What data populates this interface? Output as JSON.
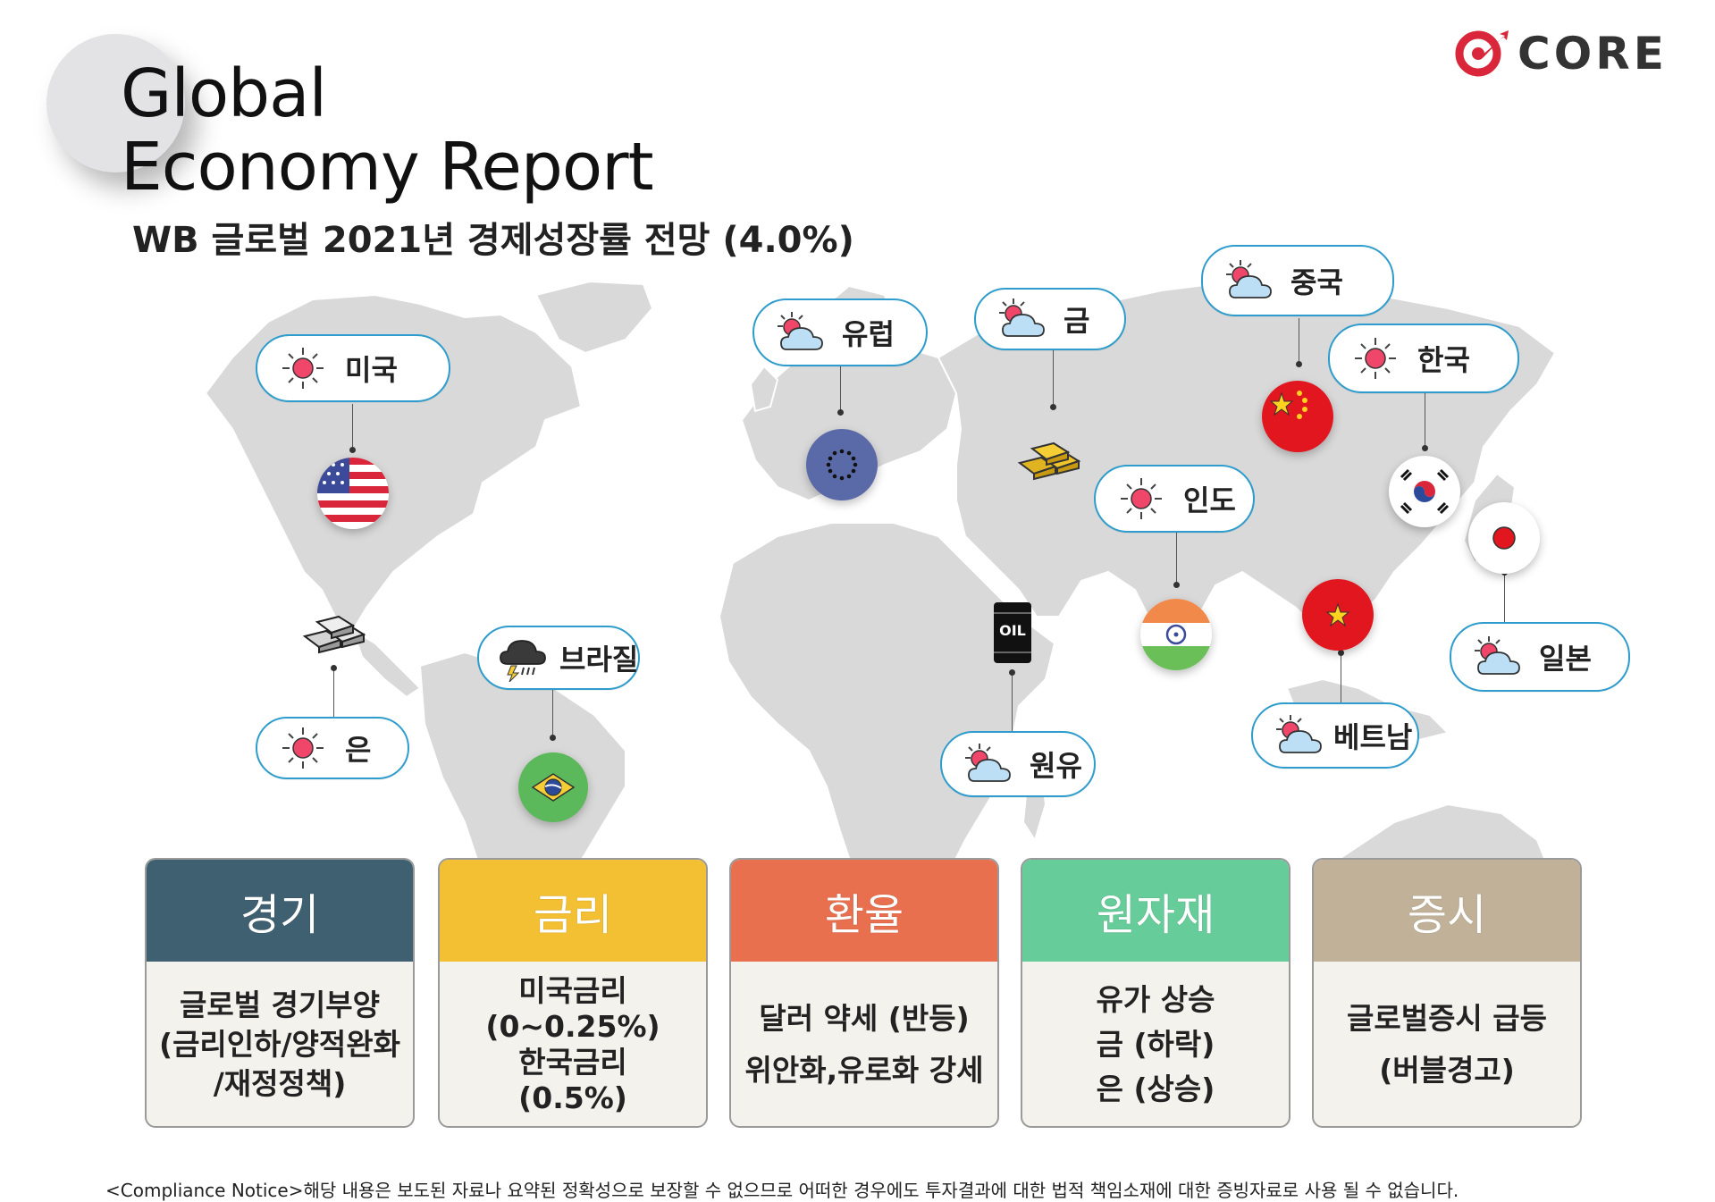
{
  "header": {
    "title_line1": "Global",
    "title_line2": "Economy Report",
    "subtitle": "WB 글로벌 2021년 경제성장률 전망 (4.0%)"
  },
  "logo": {
    "text": "CORE",
    "accent_color": "#d9263a"
  },
  "callouts": [
    {
      "id": "usa",
      "label": "미국",
      "weather": "sun-icon"
    },
    {
      "id": "europe",
      "label": "유럽",
      "weather": "sun-cloud-icon"
    },
    {
      "id": "gold",
      "label": "금",
      "weather": "sun-cloud-icon"
    },
    {
      "id": "china",
      "label": "중국",
      "weather": "sun-cloud-icon"
    },
    {
      "id": "korea",
      "label": "한국",
      "weather": "sun-icon"
    },
    {
      "id": "india",
      "label": "인도",
      "weather": "sun-icon"
    },
    {
      "id": "brazil",
      "label": "브라질",
      "weather": "storm-cloud-icon"
    },
    {
      "id": "silver",
      "label": "은",
      "weather": "sun-icon"
    },
    {
      "id": "oil",
      "label": "원유",
      "weather": "sun-cloud-icon"
    },
    {
      "id": "vietnam",
      "label": "베트남",
      "weather": "sun-cloud-icon"
    },
    {
      "id": "japan",
      "label": "일본",
      "weather": "sun-cloud-icon"
    }
  ],
  "badges": {
    "oil_label": "OIL"
  },
  "cards": [
    {
      "head": "경기",
      "color": "#3f6070",
      "lines": [
        "글로벌 경기부양",
        "(금리인하/양적완화",
        "/재정정책)"
      ]
    },
    {
      "head": "금리",
      "color": "#f3bf33",
      "lines": [
        "미국금리",
        "(0~0.25%)",
        "한국금리",
        "(0.5%)"
      ]
    },
    {
      "head": "환율",
      "color": "#e8704f",
      "lines": [
        "달러 약세 (반등)",
        "위안화,유로화 강세"
      ]
    },
    {
      "head": "원자재",
      "color": "#66cc99",
      "lines": [
        "유가 상승",
        "금 (하락)",
        "은 (상승)"
      ]
    },
    {
      "head": "증시",
      "color": "#c0b198",
      "lines": [
        "글로벌증시 급등",
        "(버블경고)"
      ]
    }
  ],
  "notice": "<Compliance Notice>해당 내용은 보도된 자료나 요약된 정확성으로 보장할 수 없으므로 어떠한 경우에도 투자결과에 대한 법적 책임소재에 대한 증빙자료로 사용 될 수 없습니다."
}
